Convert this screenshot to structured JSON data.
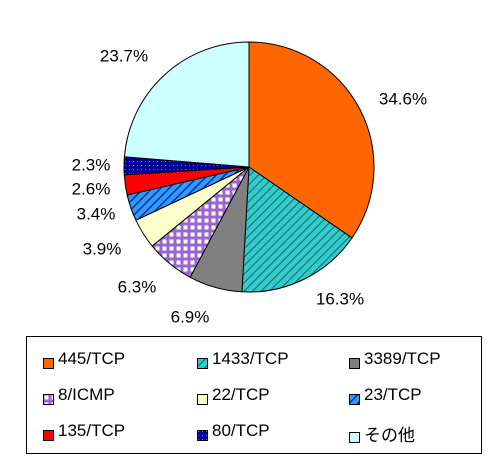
{
  "chart_data": {
    "type": "pie",
    "title": "",
    "slices": [
      {
        "name": "445/TCP",
        "value": 34.6,
        "label": "34.6%",
        "color": "#ff6600",
        "pattern": "solid"
      },
      {
        "name": "1433/TCP",
        "value": 16.3,
        "label": "16.3%",
        "color": "#33cccc",
        "pattern": "diag-hatch"
      },
      {
        "name": "3389/TCP",
        "value": 6.9,
        "label": "6.9%",
        "color": "#808080",
        "pattern": "solid"
      },
      {
        "name": "8/ICMP",
        "value": 6.3,
        "label": "6.3%",
        "color": "#9966cc",
        "pattern": "grid"
      },
      {
        "name": "22/TCP",
        "value": 3.9,
        "label": "3.9%",
        "color": "#ffffcc",
        "pattern": "solid"
      },
      {
        "name": "23/TCP",
        "value": 3.4,
        "label": "3.4%",
        "color": "#0066cc",
        "pattern": "diag-hatch-dark"
      },
      {
        "name": "135/TCP",
        "value": 2.6,
        "label": "2.6%",
        "color": "#ff0000",
        "pattern": "solid"
      },
      {
        "name": "80/TCP",
        "value": 2.3,
        "label": "2.3%",
        "color": "#000099",
        "pattern": "dots"
      },
      {
        "name": "その他",
        "value": 23.7,
        "label": "23.7%",
        "color": "#ccffff",
        "pattern": "solid"
      }
    ],
    "legend_position": "bottom",
    "start_angle": "12 o'clock",
    "direction": "clockwise"
  }
}
